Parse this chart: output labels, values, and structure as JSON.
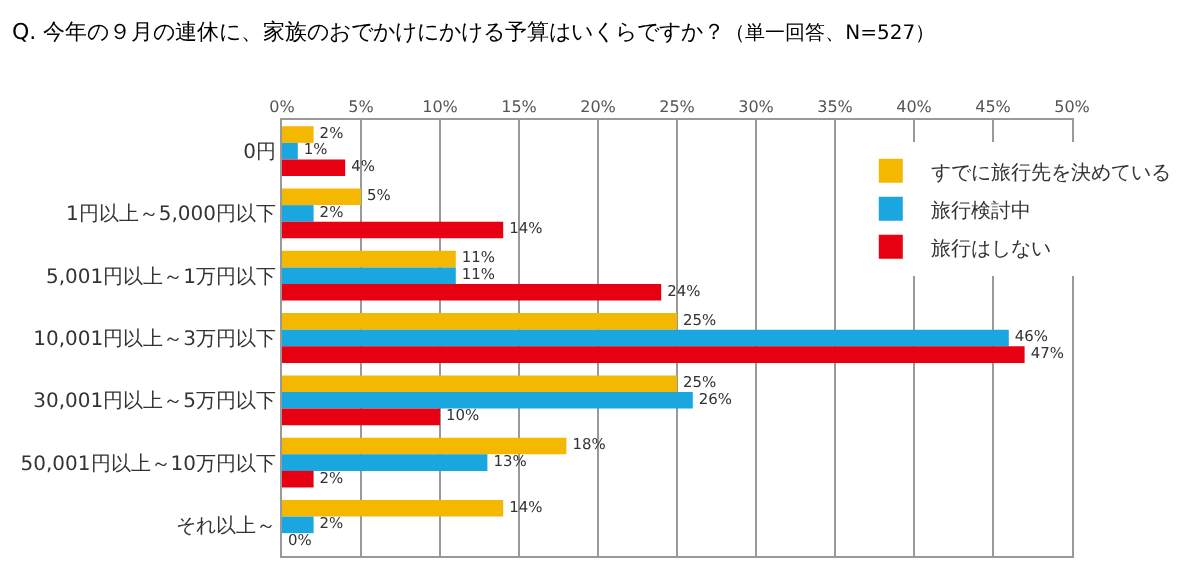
{
  "chart_data": {
    "type": "bar",
    "orientation": "horizontal",
    "title": "Q. 今年の９月の連休に、家族のおでかけにかける予算はいくらですか？",
    "subtitle": "（単一回答、N=527）",
    "categories": [
      "0円",
      "1円以上～5,000円以下",
      "5,001円以上～1万円以下",
      "10,001円以上～3万円以下",
      "30,001円以上～5万円以下",
      "50,001円以上～10万円以下",
      "それ以上～"
    ],
    "series": [
      {
        "name": "すでに旅行先を決めている",
        "color": "#f5b800",
        "values": [
          2,
          5,
          11,
          25,
          25,
          18,
          14
        ],
        "value_labels": [
          "2%",
          "5%",
          "11%",
          "25%",
          "25%",
          "18%",
          "14%"
        ]
      },
      {
        "name": "旅行検討中",
        "color": "#1aa7e0",
        "values": [
          1,
          2,
          11,
          46,
          26,
          13,
          2
        ],
        "value_labels": [
          "1%",
          "2%",
          "11%",
          "46%",
          "26%",
          "13%",
          "2%"
        ]
      },
      {
        "name": "旅行はしない",
        "color": "#e60012",
        "values": [
          4,
          14,
          24,
          47,
          10,
          2,
          0
        ],
        "value_labels": [
          "4%",
          "14%",
          "24%",
          "47%",
          "10%",
          "2%",
          "0%"
        ]
      }
    ],
    "xlim": [
      0,
      50
    ],
    "xticks": [
      {
        "value": 0,
        "label": "0%"
      },
      {
        "value": 5,
        "label": "5%"
      },
      {
        "value": 10,
        "label": "10%"
      },
      {
        "value": 15,
        "label": "15%"
      },
      {
        "value": 20,
        "label": "20%"
      },
      {
        "value": 25,
        "label": "25%"
      },
      {
        "value": 30,
        "label": "30%"
      },
      {
        "value": 35,
        "label": "35%"
      },
      {
        "value": 40,
        "label": "40%"
      },
      {
        "value": 45,
        "label": "45%"
      },
      {
        "value": 50,
        "label": "50%"
      }
    ],
    "grid": "x",
    "legend": "top right"
  }
}
